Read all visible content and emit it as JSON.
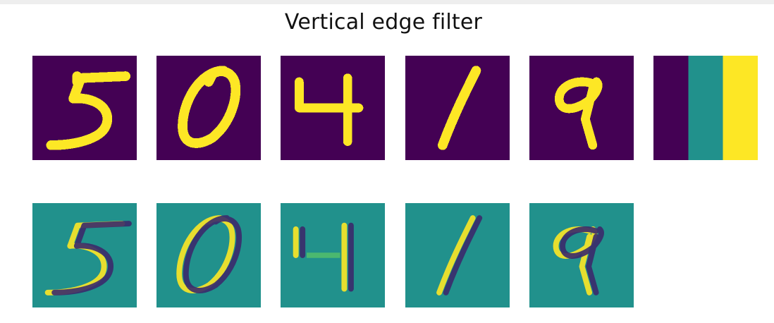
{
  "chart_data": {
    "type": "heatmap",
    "title": "Vertical edge filter",
    "colormap": "viridis",
    "colormap_colors": {
      "low": "#440154",
      "mid": "#21918c",
      "high": "#fde725",
      "mid_low": "#31688e",
      "mid_high": "#5ec962",
      "dark": "#3b2a6b"
    },
    "axes_visible": false,
    "rows": [
      {
        "role": "input",
        "panels": [
          {
            "digit": "5"
          },
          {
            "digit": "0"
          },
          {
            "digit": "4"
          },
          {
            "digit": "1"
          },
          {
            "digit": "9"
          },
          {
            "kernel": true,
            "values": [
              [
                0,
                0.5,
                1
              ]
            ]
          }
        ]
      },
      {
        "role": "filtered",
        "panels": [
          {
            "digit": "5"
          },
          {
            "digit": "0"
          },
          {
            "digit": "4"
          },
          {
            "digit": "1"
          },
          {
            "digit": "9"
          }
        ]
      }
    ]
  }
}
